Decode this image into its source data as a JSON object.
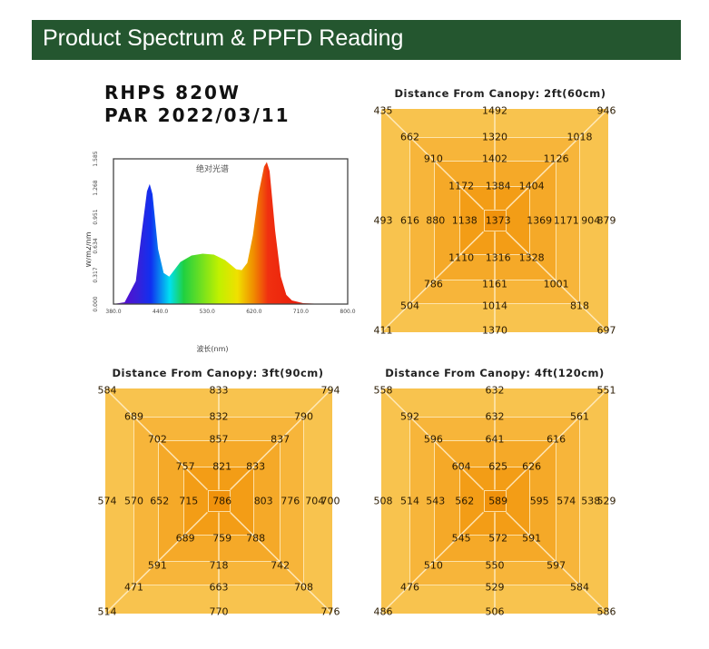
{
  "header": {
    "title": "Product Spectrum & PPFD Reading",
    "color": "#24562f"
  },
  "product": {
    "model": "RHPS 820W",
    "par_date": "PAR 2022/03/11"
  },
  "chart_data": [
    {
      "type": "area",
      "title": "绝对光谱",
      "xlabel": "波长(nm)",
      "ylabel": "W/m2/nm",
      "x_ticks": [
        "380.0",
        "440.0",
        "530.0",
        "620.0",
        "710.0",
        "800.0"
      ],
      "y_ticks": [
        "0.000",
        "0.317",
        "0.634",
        "0.951",
        "1.268",
        "1.585"
      ],
      "xlim": [
        380,
        800
      ],
      "ylim": [
        0,
        1.585
      ],
      "x": [
        380,
        400,
        420,
        430,
        440,
        445,
        450,
        460,
        470,
        480,
        490,
        500,
        520,
        540,
        560,
        580,
        600,
        610,
        620,
        630,
        640,
        650,
        655,
        660,
        670,
        680,
        690,
        700,
        720,
        760,
        800
      ],
      "y": [
        0,
        0.02,
        0.25,
        0.75,
        1.23,
        1.31,
        1.2,
        0.6,
        0.34,
        0.3,
        0.38,
        0.46,
        0.53,
        0.55,
        0.54,
        0.48,
        0.38,
        0.37,
        0.45,
        0.75,
        1.2,
        1.5,
        1.55,
        1.45,
        0.8,
        0.3,
        0.1,
        0.04,
        0.01,
        0,
        0
      ]
    },
    {
      "type": "heatmap",
      "title": "Distance From Canopy:  2ft(60cm)",
      "rows": [
        [
          435,
          1492,
          946
        ],
        [
          662,
          1320,
          1018
        ],
        [
          910,
          1402,
          1126
        ],
        [
          1172,
          1384,
          1404
        ],
        [
          493,
          616,
          880,
          1138,
          1373,
          1369,
          1171,
          904,
          879
        ],
        [
          1110,
          1316,
          1328
        ],
        [
          786,
          1161,
          1001
        ],
        [
          504,
          1014,
          818
        ],
        [
          411,
          1370,
          697
        ]
      ]
    },
    {
      "type": "heatmap",
      "title": "Distance From Canopy:  3ft(90cm)",
      "rows": [
        [
          584,
          833,
          794
        ],
        [
          689,
          832,
          790
        ],
        [
          702,
          857,
          837
        ],
        [
          757,
          821,
          833
        ],
        [
          574,
          570,
          652,
          715,
          786,
          803,
          776,
          704,
          700
        ],
        [
          689,
          759,
          788
        ],
        [
          591,
          718,
          742
        ],
        [
          471,
          663,
          708
        ],
        [
          514,
          770,
          776
        ]
      ]
    },
    {
      "type": "heatmap",
      "title": "Distance From Canopy:  4ft(120cm)",
      "rows": [
        [
          558,
          632,
          551
        ],
        [
          592,
          632,
          561
        ],
        [
          596,
          641,
          616
        ],
        [
          604,
          625,
          626
        ],
        [
          508,
          514,
          543,
          562,
          589,
          595,
          574,
          538,
          529
        ],
        [
          545,
          572,
          591
        ],
        [
          510,
          550,
          597
        ],
        [
          476,
          529,
          584
        ],
        [
          486,
          506,
          586
        ]
      ]
    }
  ],
  "ring_colors": [
    "#f8c34e",
    "#f7b53a",
    "#f5a928",
    "#f39d16",
    "#f0920c"
  ]
}
